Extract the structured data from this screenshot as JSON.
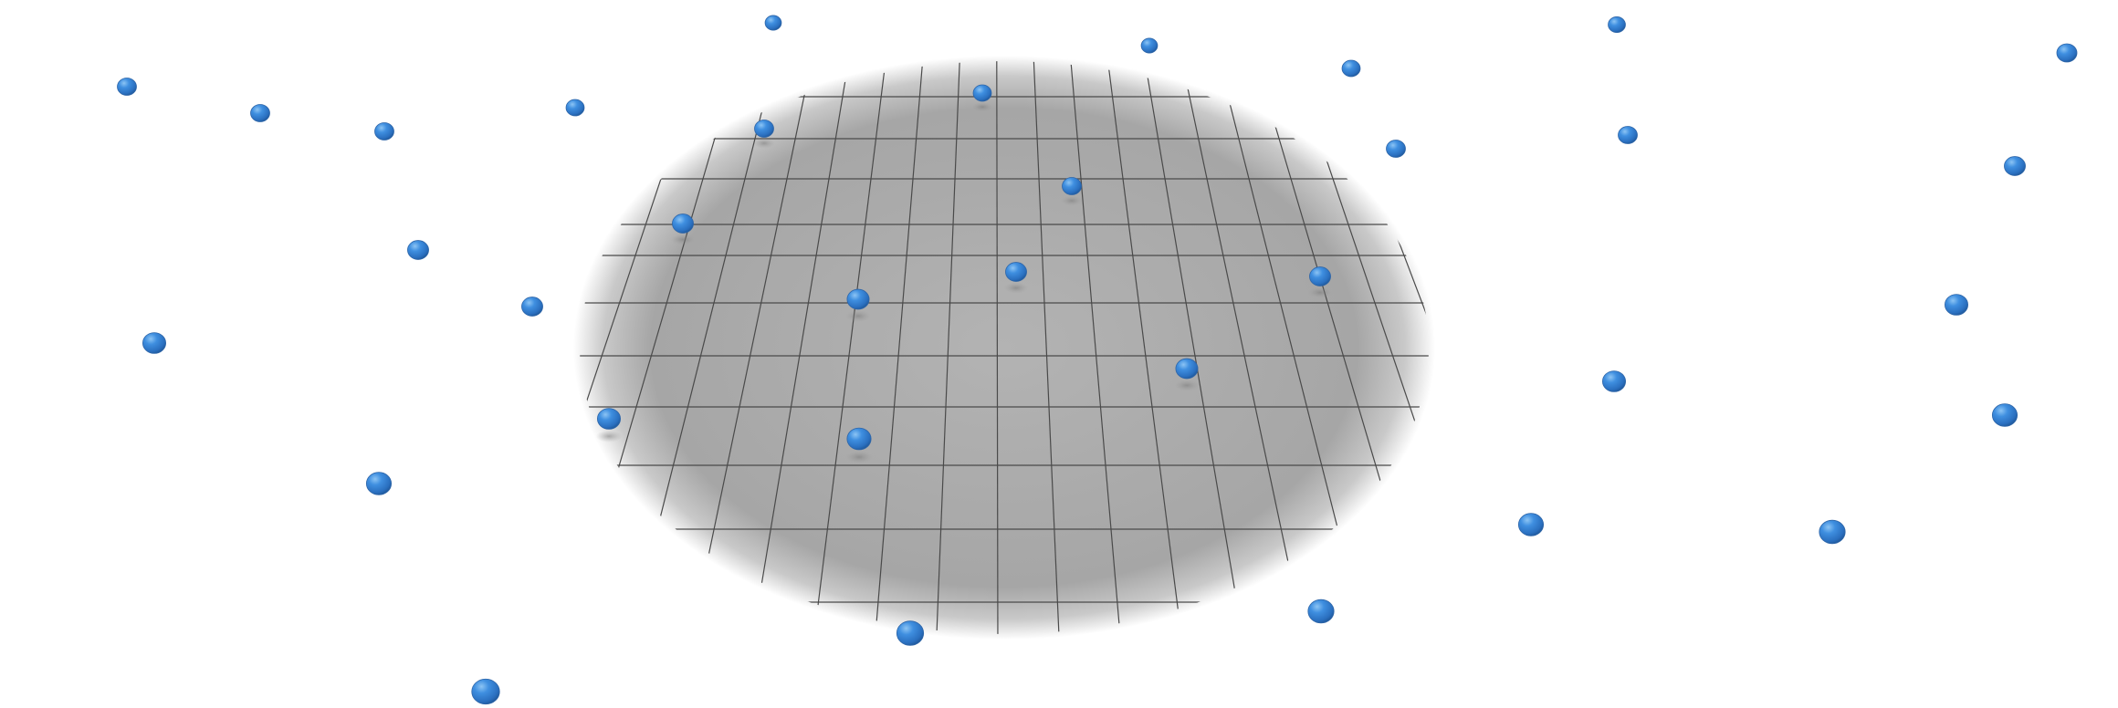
{
  "scene": {
    "background_color": "#ffffff",
    "floor": {
      "color": "#a9a9a9",
      "grid_line_color": "#4a4a4a",
      "texture": "concrete-tile-grid"
    },
    "sphere_color": "#3a86d6",
    "sphere_shadow_color": "#2f66a8",
    "sphere_count": 36
  }
}
